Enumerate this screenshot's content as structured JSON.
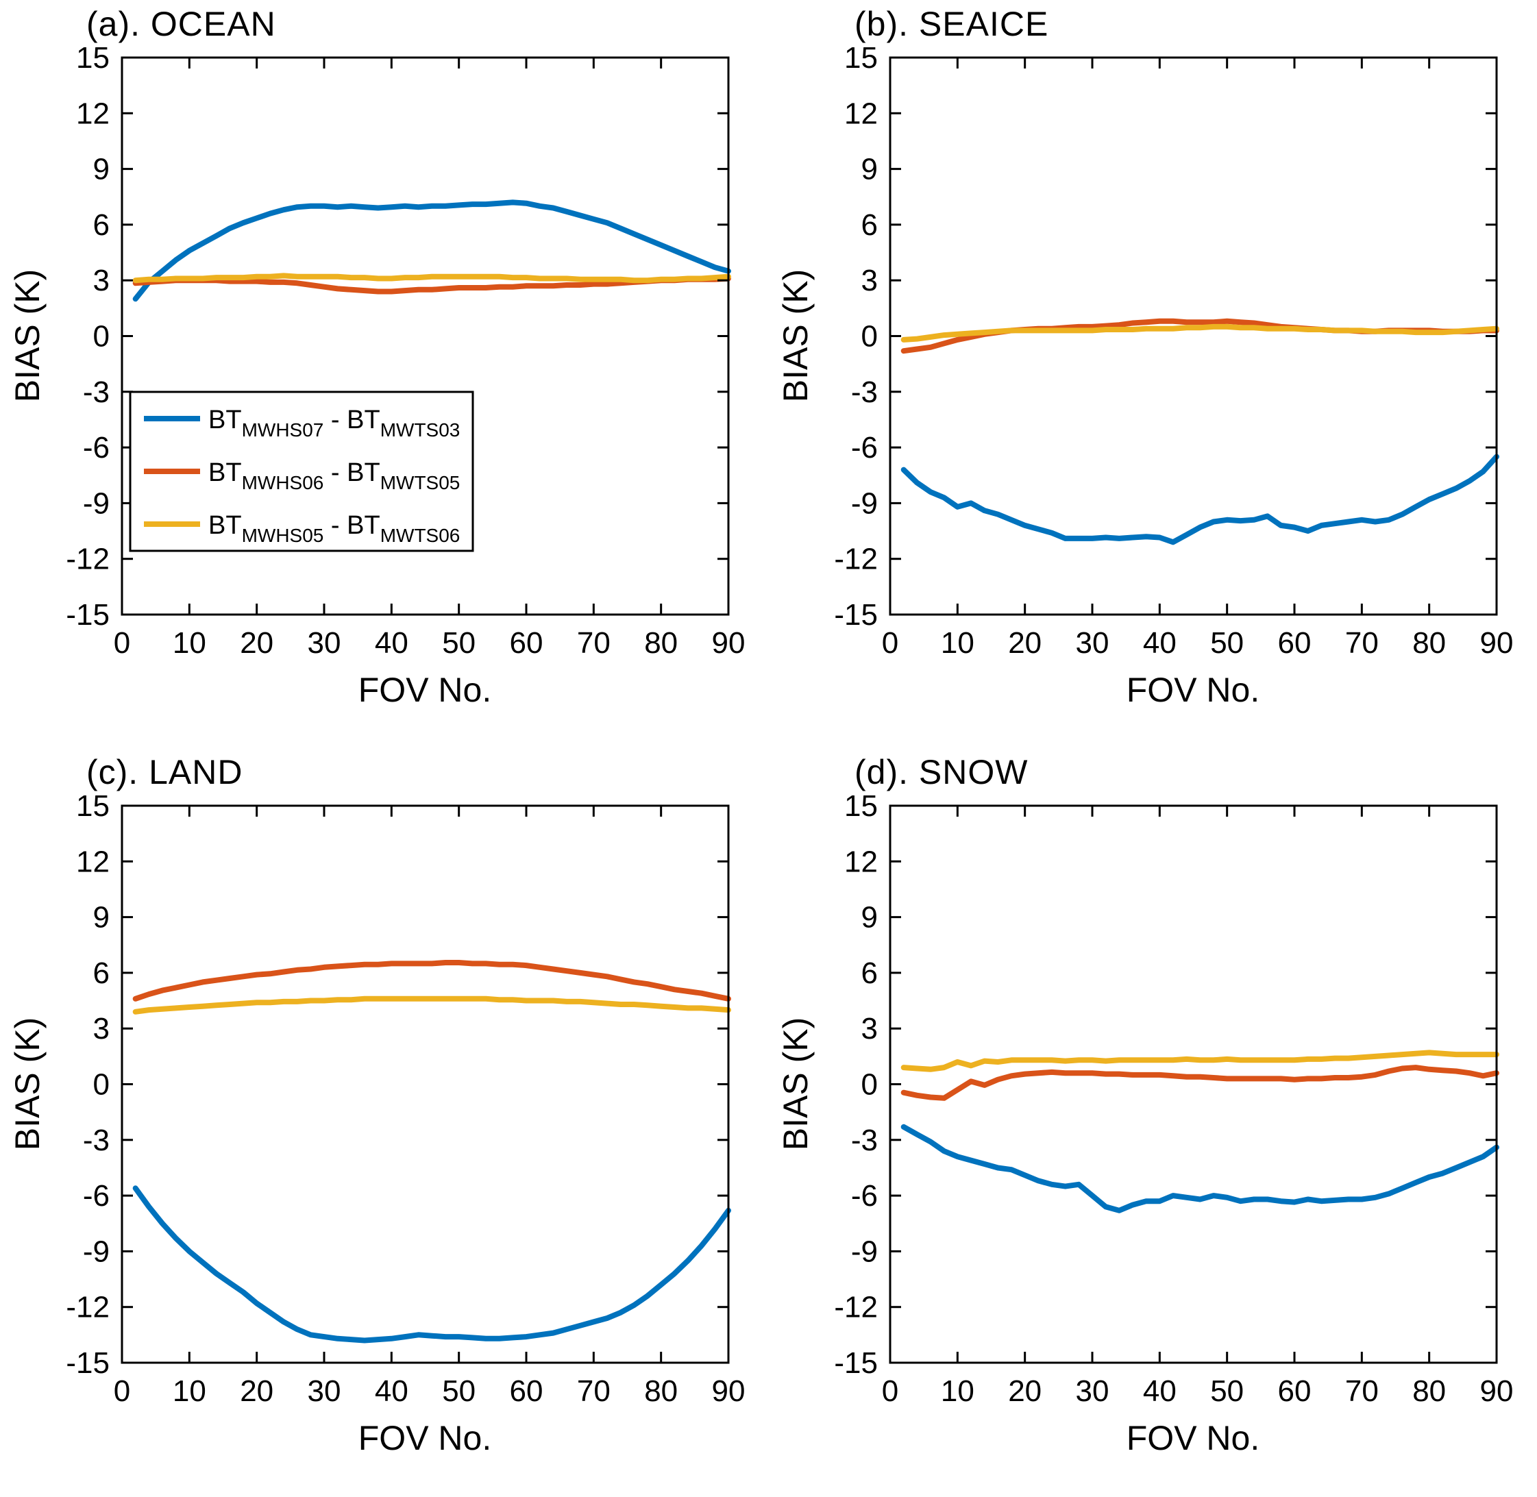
{
  "figure": {
    "background": "#ffffff",
    "text_color": "#000000",
    "ylabel": "BIAS (K)",
    "xlabel": "FOV No.",
    "xlim": [
      0,
      90
    ],
    "ylim": [
      -15,
      15
    ],
    "xticks": [
      0,
      10,
      20,
      30,
      40,
      50,
      60,
      70,
      80,
      90
    ],
    "yticks": [
      -15,
      -12,
      -9,
      -6,
      -3,
      0,
      3,
      6,
      9,
      12,
      15
    ],
    "grid": false,
    "colors": {
      "blue": "#0072BD",
      "orange": "#D95319",
      "yellow": "#EDB120"
    }
  },
  "legend": {
    "position": "inside-panel-a",
    "items": [
      {
        "color": "#0072BD",
        "parts": [
          {
            "t": "BT",
            "sub": false
          },
          {
            "t": "MWHS07",
            "sub": true
          },
          {
            "t": " - BT",
            "sub": false
          },
          {
            "t": "MWTS03",
            "sub": true
          }
        ]
      },
      {
        "color": "#D95319",
        "parts": [
          {
            "t": "BT",
            "sub": false
          },
          {
            "t": "MWHS06",
            "sub": true
          },
          {
            "t": " - BT",
            "sub": false
          },
          {
            "t": "MWTS05",
            "sub": true
          }
        ]
      },
      {
        "color": "#EDB120",
        "parts": [
          {
            "t": "BT",
            "sub": false
          },
          {
            "t": "MWHS05",
            "sub": true
          },
          {
            "t": " - BT",
            "sub": false
          },
          {
            "t": "MWTS06",
            "sub": true
          }
        ]
      }
    ]
  },
  "chart_data": [
    {
      "id": "a",
      "title": "(a). OCEAN",
      "type": "line",
      "xlabel": "FOV No.",
      "ylabel": "BIAS (K)",
      "xlim": [
        0,
        90
      ],
      "ylim": [
        -15,
        15
      ],
      "show_legend": true,
      "x": [
        2,
        4,
        6,
        8,
        10,
        12,
        14,
        16,
        18,
        20,
        22,
        24,
        26,
        28,
        30,
        32,
        34,
        36,
        38,
        40,
        42,
        44,
        46,
        48,
        50,
        52,
        54,
        56,
        58,
        60,
        62,
        64,
        66,
        68,
        70,
        72,
        74,
        76,
        78,
        80,
        82,
        84,
        86,
        88,
        90
      ],
      "series": [
        {
          "name": "BT_MWHS07 - BT_MWTS03",
          "color": "#0072BD",
          "values": [
            2.0,
            2.9,
            3.5,
            4.1,
            4.6,
            5.0,
            5.4,
            5.8,
            6.1,
            6.35,
            6.6,
            6.8,
            6.95,
            7.0,
            7.0,
            6.95,
            7.0,
            6.95,
            6.9,
            6.95,
            7.0,
            6.95,
            7.0,
            7.0,
            7.05,
            7.1,
            7.1,
            7.15,
            7.2,
            7.15,
            7.0,
            6.9,
            6.7,
            6.5,
            6.3,
            6.1,
            5.8,
            5.5,
            5.2,
            4.9,
            4.6,
            4.3,
            4.0,
            3.7,
            3.5
          ]
        },
        {
          "name": "BT_MWHS06 - BT_MWTS05",
          "color": "#D95319",
          "values": [
            2.85,
            2.9,
            2.95,
            3.0,
            3.0,
            3.0,
            3.0,
            2.95,
            2.95,
            2.95,
            2.9,
            2.9,
            2.85,
            2.75,
            2.65,
            2.55,
            2.5,
            2.45,
            2.4,
            2.4,
            2.45,
            2.5,
            2.5,
            2.55,
            2.6,
            2.6,
            2.6,
            2.65,
            2.65,
            2.7,
            2.7,
            2.7,
            2.75,
            2.75,
            2.8,
            2.8,
            2.85,
            2.9,
            2.95,
            3.0,
            3.0,
            3.05,
            3.05,
            3.05,
            3.1
          ]
        },
        {
          "name": "BT_MWHS05 - BT_MWTS06",
          "color": "#EDB120",
          "values": [
            3.0,
            3.05,
            3.05,
            3.1,
            3.1,
            3.1,
            3.15,
            3.15,
            3.15,
            3.2,
            3.2,
            3.25,
            3.2,
            3.2,
            3.2,
            3.2,
            3.15,
            3.15,
            3.1,
            3.1,
            3.15,
            3.15,
            3.2,
            3.2,
            3.2,
            3.2,
            3.2,
            3.2,
            3.15,
            3.15,
            3.1,
            3.1,
            3.1,
            3.05,
            3.05,
            3.05,
            3.05,
            3.0,
            3.0,
            3.05,
            3.05,
            3.1,
            3.1,
            3.15,
            3.2
          ]
        }
      ]
    },
    {
      "id": "b",
      "title": "(b). SEAICE",
      "type": "line",
      "xlabel": "FOV No.",
      "ylabel": "BIAS (K)",
      "xlim": [
        0,
        90
      ],
      "ylim": [
        -15,
        15
      ],
      "show_legend": false,
      "x": [
        2,
        4,
        6,
        8,
        10,
        12,
        14,
        16,
        18,
        20,
        22,
        24,
        26,
        28,
        30,
        32,
        34,
        36,
        38,
        40,
        42,
        44,
        46,
        48,
        50,
        52,
        54,
        56,
        58,
        60,
        62,
        64,
        66,
        68,
        70,
        72,
        74,
        76,
        78,
        80,
        82,
        84,
        86,
        88,
        90
      ],
      "series": [
        {
          "name": "BT_MWHS07 - BT_MWTS03",
          "color": "#0072BD",
          "values": [
            -7.2,
            -7.9,
            -8.4,
            -8.7,
            -9.2,
            -9.0,
            -9.4,
            -9.6,
            -9.9,
            -10.2,
            -10.4,
            -10.6,
            -10.9,
            -10.9,
            -10.9,
            -10.85,
            -10.9,
            -10.85,
            -10.8,
            -10.85,
            -11.1,
            -10.7,
            -10.3,
            -10.0,
            -9.9,
            -9.95,
            -9.9,
            -9.7,
            -10.2,
            -10.3,
            -10.5,
            -10.2,
            -10.1,
            -10.0,
            -9.9,
            -10.0,
            -9.9,
            -9.6,
            -9.2,
            -8.8,
            -8.5,
            -8.2,
            -7.8,
            -7.3,
            -6.5
          ]
        },
        {
          "name": "BT_MWHS06 - BT_MWTS05",
          "color": "#D95319",
          "values": [
            -0.8,
            -0.7,
            -0.6,
            -0.4,
            -0.2,
            -0.05,
            0.1,
            0.2,
            0.3,
            0.35,
            0.4,
            0.4,
            0.45,
            0.5,
            0.5,
            0.55,
            0.6,
            0.7,
            0.75,
            0.8,
            0.8,
            0.75,
            0.75,
            0.75,
            0.8,
            0.75,
            0.7,
            0.6,
            0.5,
            0.45,
            0.4,
            0.35,
            0.3,
            0.3,
            0.25,
            0.25,
            0.3,
            0.3,
            0.3,
            0.3,
            0.25,
            0.25,
            0.25,
            0.3,
            0.3
          ]
        },
        {
          "name": "BT_MWHS05 - BT_MWTS06",
          "color": "#EDB120",
          "values": [
            -0.2,
            -0.15,
            -0.05,
            0.05,
            0.1,
            0.15,
            0.2,
            0.25,
            0.3,
            0.3,
            0.3,
            0.3,
            0.3,
            0.3,
            0.3,
            0.35,
            0.35,
            0.35,
            0.4,
            0.4,
            0.4,
            0.45,
            0.45,
            0.5,
            0.5,
            0.45,
            0.45,
            0.4,
            0.4,
            0.4,
            0.35,
            0.35,
            0.3,
            0.3,
            0.3,
            0.25,
            0.25,
            0.25,
            0.2,
            0.2,
            0.2,
            0.25,
            0.3,
            0.35,
            0.4
          ]
        }
      ]
    },
    {
      "id": "c",
      "title": "(c). LAND",
      "type": "line",
      "xlabel": "FOV No.",
      "ylabel": "BIAS (K)",
      "xlim": [
        0,
        90
      ],
      "ylim": [
        -15,
        15
      ],
      "show_legend": false,
      "x": [
        2,
        4,
        6,
        8,
        10,
        12,
        14,
        16,
        18,
        20,
        22,
        24,
        26,
        28,
        30,
        32,
        34,
        36,
        38,
        40,
        42,
        44,
        46,
        48,
        50,
        52,
        54,
        56,
        58,
        60,
        62,
        64,
        66,
        68,
        70,
        72,
        74,
        76,
        78,
        80,
        82,
        84,
        86,
        88,
        90
      ],
      "series": [
        {
          "name": "BT_MWHS07 - BT_MWTS03",
          "color": "#0072BD",
          "values": [
            -5.6,
            -6.6,
            -7.5,
            -8.3,
            -9.0,
            -9.6,
            -10.2,
            -10.7,
            -11.2,
            -11.8,
            -12.3,
            -12.8,
            -13.2,
            -13.5,
            -13.6,
            -13.7,
            -13.75,
            -13.8,
            -13.75,
            -13.7,
            -13.6,
            -13.5,
            -13.55,
            -13.6,
            -13.6,
            -13.65,
            -13.7,
            -13.7,
            -13.65,
            -13.6,
            -13.5,
            -13.4,
            -13.2,
            -13.0,
            -12.8,
            -12.6,
            -12.3,
            -11.9,
            -11.4,
            -10.8,
            -10.2,
            -9.5,
            -8.7,
            -7.8,
            -6.8
          ]
        },
        {
          "name": "BT_MWHS06 - BT_MWTS05",
          "color": "#D95319",
          "values": [
            4.6,
            4.85,
            5.05,
            5.2,
            5.35,
            5.5,
            5.6,
            5.7,
            5.8,
            5.9,
            5.95,
            6.05,
            6.15,
            6.2,
            6.3,
            6.35,
            6.4,
            6.45,
            6.45,
            6.5,
            6.5,
            6.5,
            6.5,
            6.55,
            6.55,
            6.5,
            6.5,
            6.45,
            6.45,
            6.4,
            6.3,
            6.2,
            6.1,
            6.0,
            5.9,
            5.8,
            5.65,
            5.5,
            5.4,
            5.25,
            5.1,
            5.0,
            4.9,
            4.75,
            4.6
          ]
        },
        {
          "name": "BT_MWHS05 - BT_MWTS06",
          "color": "#EDB120",
          "values": [
            3.9,
            4.0,
            4.05,
            4.1,
            4.15,
            4.2,
            4.25,
            4.3,
            4.35,
            4.4,
            4.4,
            4.45,
            4.45,
            4.5,
            4.5,
            4.55,
            4.55,
            4.6,
            4.6,
            4.6,
            4.6,
            4.6,
            4.6,
            4.6,
            4.6,
            4.6,
            4.6,
            4.55,
            4.55,
            4.5,
            4.5,
            4.5,
            4.45,
            4.45,
            4.4,
            4.35,
            4.3,
            4.3,
            4.25,
            4.2,
            4.15,
            4.1,
            4.1,
            4.05,
            4.0
          ]
        }
      ]
    },
    {
      "id": "d",
      "title": "(d). SNOW",
      "type": "line",
      "xlabel": "FOV No.",
      "ylabel": "BIAS (K)",
      "xlim": [
        0,
        90
      ],
      "ylim": [
        -15,
        15
      ],
      "show_legend": false,
      "x": [
        2,
        4,
        6,
        8,
        10,
        12,
        14,
        16,
        18,
        20,
        22,
        24,
        26,
        28,
        30,
        32,
        34,
        36,
        38,
        40,
        42,
        44,
        46,
        48,
        50,
        52,
        54,
        56,
        58,
        60,
        62,
        64,
        66,
        68,
        70,
        72,
        74,
        76,
        78,
        80,
        82,
        84,
        86,
        88,
        90
      ],
      "series": [
        {
          "name": "BT_MWHS07 - BT_MWTS03",
          "color": "#0072BD",
          "values": [
            -2.3,
            -2.7,
            -3.1,
            -3.6,
            -3.9,
            -4.1,
            -4.3,
            -4.5,
            -4.6,
            -4.9,
            -5.2,
            -5.4,
            -5.5,
            -5.4,
            -6.0,
            -6.6,
            -6.8,
            -6.5,
            -6.3,
            -6.3,
            -6.0,
            -6.1,
            -6.2,
            -6.0,
            -6.1,
            -6.3,
            -6.2,
            -6.2,
            -6.3,
            -6.35,
            -6.2,
            -6.3,
            -6.25,
            -6.2,
            -6.2,
            -6.1,
            -5.9,
            -5.6,
            -5.3,
            -5.0,
            -4.8,
            -4.5,
            -4.2,
            -3.9,
            -3.4
          ]
        },
        {
          "name": "BT_MWHS06 - BT_MWTS05",
          "color": "#D95319",
          "values": [
            -0.45,
            -0.6,
            -0.7,
            -0.75,
            -0.3,
            0.15,
            -0.05,
            0.25,
            0.45,
            0.55,
            0.6,
            0.65,
            0.6,
            0.6,
            0.6,
            0.55,
            0.55,
            0.5,
            0.5,
            0.5,
            0.45,
            0.4,
            0.4,
            0.35,
            0.3,
            0.3,
            0.3,
            0.3,
            0.3,
            0.25,
            0.3,
            0.3,
            0.35,
            0.35,
            0.4,
            0.5,
            0.7,
            0.85,
            0.9,
            0.8,
            0.75,
            0.7,
            0.6,
            0.45,
            0.6
          ]
        },
        {
          "name": "BT_MWHS05 - BT_MWTS06",
          "color": "#EDB120",
          "values": [
            0.9,
            0.85,
            0.8,
            0.9,
            1.2,
            1.0,
            1.25,
            1.2,
            1.3,
            1.3,
            1.3,
            1.3,
            1.25,
            1.3,
            1.3,
            1.25,
            1.3,
            1.3,
            1.3,
            1.3,
            1.3,
            1.35,
            1.3,
            1.3,
            1.35,
            1.3,
            1.3,
            1.3,
            1.3,
            1.3,
            1.35,
            1.35,
            1.4,
            1.4,
            1.45,
            1.5,
            1.55,
            1.6,
            1.65,
            1.7,
            1.65,
            1.6,
            1.6,
            1.6,
            1.6
          ]
        }
      ]
    }
  ]
}
